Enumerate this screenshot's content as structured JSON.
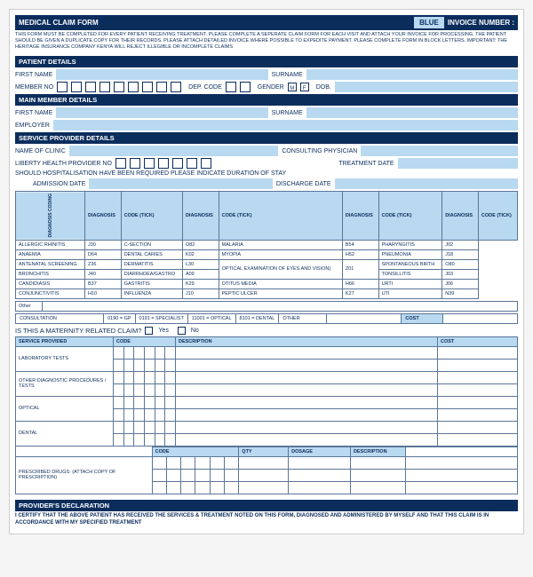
{
  "header": {
    "title": "MEDICAL CLAIM FORM",
    "blue_tag": "BLUE",
    "invoice_label": "INVOICE NUMBER  :",
    "fine_print": "THIS FORM MUST BE COMPLETED FOR EVERY PATIENT RECEIVING TREATMENT. PLEASE COMPLETE A SEPERATE CLAIM FORM FOR EACH VISIT AND ATTACH YOUR INVOICE FOR PROCESSING. THE PATIENT SHOULD BE GIVEN A DUPLICATE COPY FOR THEIR RECORDS. PLEASE ATTACH DETAILED INVOICE WHERE POSSIBLE TO EXPEDITE PAYMENT. PLEASE COMPLETE FORM IN BLOCK LETTERS. IMPORTANT: THE HERITAGE INSURANCE COMPANY KENYA  WILL REJECT ILLEGIBLE OR INCOMPLETE CLAIMS"
  },
  "patient": {
    "section": "PATIENT DETAILS",
    "first": "FIRST NAME",
    "surname": "SURNAME",
    "member": "MEMBER NO",
    "dep": "DEP. CODE",
    "gender": "GENDER",
    "m": "M",
    "f": "F",
    "dob": "DOB."
  },
  "member": {
    "section": "MAIN MEMBER DETAILS",
    "first": "FIRST NAME",
    "surname": "SURNAME",
    "employer": "EMPLOYER"
  },
  "provider": {
    "section": "SERVICE PROVIDER DETAILS",
    "clinic": "NAME OF CLINIC",
    "physician": "CONSULTING PHYSICIAN",
    "liberty": "LIBERTY HEALTH PROVIDER NO",
    "treat_date": "TREATMENT DATE",
    "hosp": "SHOULD HOSPITALISATION HAVE BEEN REQUIRED PLEASE INDICATE DURATION OF STAY",
    "adm_date": "ADMISSION DATE",
    "dis_date": "DISCHARGE DATE"
  },
  "diag": {
    "side": "DIAGNOSIS CODING",
    "h1": "DIAGNOSIS",
    "h2": "CODE (TICK)",
    "rows": [
      [
        "ALLERGIC RHINITIS",
        "J30",
        "C-SECTION",
        "O82",
        "MALARIA",
        "B54",
        "PHARYNGITIS",
        "J02"
      ],
      [
        "ANAEMIA",
        "D64",
        "DENTAL CARIES",
        "K02",
        "MYOPIA",
        "H52",
        "PNEUMONIA",
        "J18"
      ],
      [
        "ANTENATAL SCREENING",
        "Z36",
        "DERMATITIS",
        "L30",
        "OPTICAL EXAMINATION OF EYES AND VISION)",
        "Z01",
        "SPONTANEOUS BIRTH",
        "O80"
      ],
      [
        "BRONCHITIS",
        "J40",
        "DIARRHOEA/GASTRO",
        "A09",
        "",
        "",
        "TONSILLITIS",
        "J03"
      ],
      [
        "CANDIDIASIS",
        "B37",
        "GASTRITIS",
        "K29",
        "OTITUS MEDIA",
        "H66",
        "URTI",
        "J06"
      ],
      [
        "CONJUNCTIVITIS",
        "H10",
        "INFLUENZA",
        "J10",
        "PEPTIC ULCER",
        "K27",
        "UTI",
        "N39"
      ]
    ],
    "other": "Other"
  },
  "consult": {
    "label": "CONSULTATION",
    "c1": "0190 = GP",
    "c2": "0191 = SPECIALIST",
    "c3": "11001 = OPTICAL",
    "c4": "8101 = DENTAL",
    "c5": "OTHER",
    "cost": "COST"
  },
  "maternity": {
    "q": "IS THIS A MATERNITY RELATED CLAIM?",
    "yes": "Yes",
    "no": "No"
  },
  "services": {
    "h_service": "SERVICE PROVIDED",
    "h_code": "CODE",
    "h_desc": "DESCRIPTION",
    "h_cost": "COST",
    "rows": [
      "LABORATORY TESTS",
      "OTHER DIAGNOSTIC PROCEDURES / TESTS",
      "OPTICAL",
      "DENTAL"
    ]
  },
  "drugs": {
    "label": "PRESCRIBED DRUGS: (ATTACH COPY OF PRESCRIPTION)",
    "h_code": "CODE",
    "h_qty": "QTY",
    "h_dosage": "DOSAGE",
    "h_desc": "DESCRIPTION"
  },
  "declaration": {
    "section": "PROVIDER'S DECLARATION",
    "text": "I CERTIFY THAT THE ABOVE PATIENT HAS RECEIVED THE SERVICES & TREATMENT NOTED ON THIS FORM, DIAGNOSED AND ADMINISTERED BY MYSELF AND THAT THIS CLAIM IS IN ACCORDANCE WITH MY SPECIFIED TREATMENT"
  }
}
